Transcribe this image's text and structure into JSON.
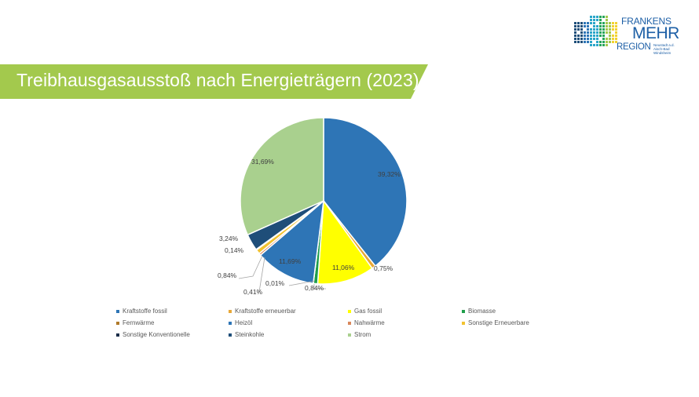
{
  "logo": {
    "line1": "FRANKENS",
    "line2": "MEHR",
    "line3": "REGION",
    "subtitle": "Neustadt a.d. Aisch-Bad Windsheim"
  },
  "banner": {
    "title": "Treibhausgasausstoß  nach Energieträgern  (2023)",
    "color": "#a3c94d"
  },
  "chart_data": {
    "type": "pie",
    "title": "Treibhausgasausstoß nach Energieträgern (2023)",
    "start_angle_deg": 0,
    "direction": "clockwise",
    "categories": [
      "Kraftstoffe fossil",
      "Kraftstoffe erneuerbar",
      "Gas fossil",
      "Biomasse",
      "Fernwärme",
      "Heizöl",
      "Nahwärme",
      "Sonstige Erneuerbare",
      "Sonstige Konventionelle",
      "Steinkohle",
      "Strom"
    ],
    "values": [
      39.32,
      0.75,
      11.06,
      0.84,
      0.01,
      11.69,
      0.41,
      0.84,
      0.14,
      3.24,
      31.69
    ],
    "labels": [
      "39,32%",
      "0,75%",
      "11,06%",
      "0,84%",
      "0,01%",
      "11,69%",
      "0,41%",
      "0,84%",
      "0,14%",
      "3,24%",
      "31,69%"
    ],
    "colors": [
      "#2e75b6",
      "#e8a838",
      "#ffff00",
      "#1e9e4a",
      "#b07a2a",
      "#2e75b6",
      "#d9875a",
      "#f2c230",
      "#1c2e4a",
      "#1f4e79",
      "#a9d08e"
    ],
    "legend_position": "bottom",
    "unit": "%"
  },
  "legend": {
    "items": [
      {
        "label": "Kraftstoffe fossil",
        "color": "#2e75b6"
      },
      {
        "label": "Kraftstoffe erneuerbar",
        "color": "#e8a838"
      },
      {
        "label": "Gas fossil",
        "color": "#ffff00"
      },
      {
        "label": "Biomasse",
        "color": "#1e9e4a"
      },
      {
        "label": "Fernwärme",
        "color": "#b07a2a"
      },
      {
        "label": "Heizöl",
        "color": "#2e75b6"
      },
      {
        "label": "Nahwärme",
        "color": "#d9875a"
      },
      {
        "label": "Sonstige Erneuerbare",
        "color": "#f2c230"
      },
      {
        "label": "Sonstige Konventionelle",
        "color": "#1c2e4a"
      },
      {
        "label": "Steinkohle",
        "color": "#1f4e79"
      },
      {
        "label": "Strom",
        "color": "#a9d08e"
      }
    ]
  }
}
